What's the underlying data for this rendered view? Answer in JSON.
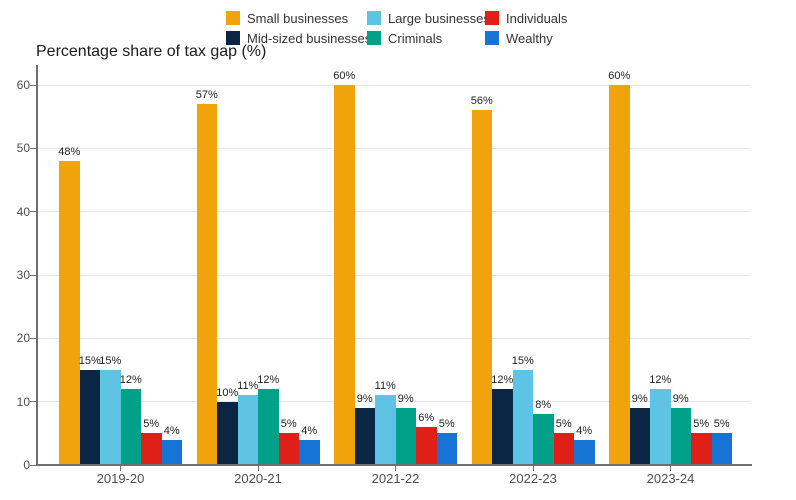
{
  "title": "Percentage share of tax gap (%)",
  "legend": {
    "items": [
      {
        "label": "Small businesses",
        "color": "#F0A30A"
      },
      {
        "label": "Large businesses",
        "color": "#5EC3E5"
      },
      {
        "label": "Individuals",
        "color": "#DE2019"
      },
      {
        "label": "Mid-sized businesses",
        "color": "#0B2545"
      },
      {
        "label": "Criminals",
        "color": "#00A188"
      },
      {
        "label": "Wealthy",
        "color": "#1574D4"
      }
    ]
  },
  "chart_data": {
    "type": "bar",
    "title": "Percentage share of tax gap (%)",
    "categories": [
      "2019-20",
      "2020-21",
      "2021-22",
      "2022-23",
      "2023-24"
    ],
    "series": [
      {
        "name": "Small businesses",
        "color": "#F0A30A",
        "values": [
          48,
          57,
          60,
          56,
          60
        ]
      },
      {
        "name": "Mid-sized businesses",
        "color": "#0B2545",
        "values": [
          15,
          10,
          9,
          12,
          9
        ]
      },
      {
        "name": "Large businesses",
        "color": "#5EC3E5",
        "values": [
          15,
          11,
          11,
          15,
          12
        ]
      },
      {
        "name": "Criminals",
        "color": "#00A188",
        "values": [
          12,
          12,
          9,
          8,
          9
        ]
      },
      {
        "name": "Individuals",
        "color": "#DE2019",
        "values": [
          5,
          5,
          6,
          5,
          5
        ]
      },
      {
        "name": "Wealthy",
        "color": "#1574D4",
        "values": [
          4,
          4,
          5,
          4,
          5
        ]
      }
    ],
    "xlabel": "",
    "ylabel": "",
    "ylim": [
      0,
      60
    ],
    "yticks": [
      0,
      10,
      20,
      30,
      40,
      50,
      60
    ],
    "data_label_format": "{v}%",
    "grid": true,
    "legend_position": "top",
    "legend_rows": [
      [
        "Small businesses",
        "Large businesses",
        "Individuals"
      ],
      [
        "Mid-sized businesses",
        "Criminals",
        "Wealthy"
      ]
    ],
    "colors": {
      "axis": "#6f6f6f",
      "gridline": "#e5e5e5",
      "tick_text": "#4f4f4f",
      "data_label_text": "#1f1f1f"
    }
  }
}
